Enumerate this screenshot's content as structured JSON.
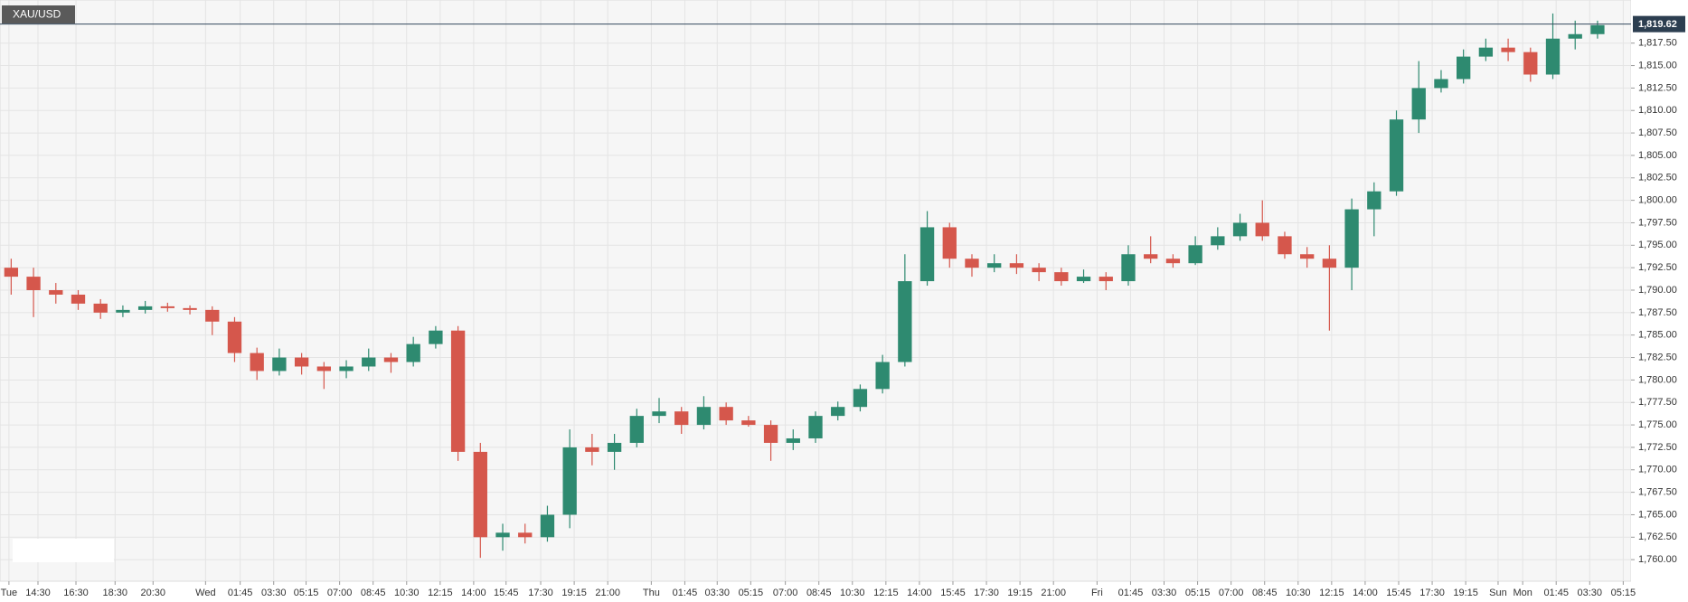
{
  "chart_data": {
    "type": "candlestick",
    "symbol": "XAU/USD",
    "last_price": {
      "value": 1819.62,
      "label": "1,819.62"
    },
    "up_color": "#2e8a70",
    "down_color": "#d5574c",
    "xlim": [
      0,
      146
    ],
    "xticks": [
      {
        "value": 0.8,
        "label": "Tue"
      },
      {
        "value": 3.4,
        "label": "14:30"
      },
      {
        "value": 6.8,
        "label": "16:30"
      },
      {
        "value": 10.3,
        "label": "18:30"
      },
      {
        "value": 13.7,
        "label": "20:30"
      },
      {
        "value": 18.4,
        "label": "Wed"
      },
      {
        "value": 21.5,
        "label": "01:45"
      },
      {
        "value": 24.5,
        "label": "03:30"
      },
      {
        "value": 27.4,
        "label": "05:15"
      },
      {
        "value": 30.4,
        "label": "07:00"
      },
      {
        "value": 33.4,
        "label": "08:45"
      },
      {
        "value": 36.4,
        "label": "10:30"
      },
      {
        "value": 39.4,
        "label": "12:15"
      },
      {
        "value": 42.4,
        "label": "14:00"
      },
      {
        "value": 45.3,
        "label": "15:45"
      },
      {
        "value": 48.4,
        "label": "17:30"
      },
      {
        "value": 51.4,
        "label": "19:15"
      },
      {
        "value": 54.4,
        "label": "21:00"
      },
      {
        "value": 58.3,
        "label": "Thu"
      },
      {
        "value": 61.3,
        "label": "01:45"
      },
      {
        "value": 64.2,
        "label": "03:30"
      },
      {
        "value": 67.2,
        "label": "05:15"
      },
      {
        "value": 70.3,
        "label": "07:00"
      },
      {
        "value": 73.3,
        "label": "08:45"
      },
      {
        "value": 76.3,
        "label": "10:30"
      },
      {
        "value": 79.3,
        "label": "12:15"
      },
      {
        "value": 82.3,
        "label": "14:00"
      },
      {
        "value": 85.3,
        "label": "15:45"
      },
      {
        "value": 88.3,
        "label": "17:30"
      },
      {
        "value": 91.3,
        "label": "19:15"
      },
      {
        "value": 94.3,
        "label": "21:00"
      },
      {
        "value": 98.2,
        "label": "Fri"
      },
      {
        "value": 101.2,
        "label": "01:45"
      },
      {
        "value": 104.2,
        "label": "03:30"
      },
      {
        "value": 107.2,
        "label": "05:15"
      },
      {
        "value": 110.2,
        "label": "07:00"
      },
      {
        "value": 113.2,
        "label": "08:45"
      },
      {
        "value": 116.2,
        "label": "10:30"
      },
      {
        "value": 119.2,
        "label": "12:15"
      },
      {
        "value": 122.2,
        "label": "14:00"
      },
      {
        "value": 125.2,
        "label": "15:45"
      },
      {
        "value": 128.2,
        "label": "17:30"
      },
      {
        "value": 131.2,
        "label": "19:15"
      },
      {
        "value": 134.1,
        "label": "Sun"
      },
      {
        "value": 136.3,
        "label": "Mon"
      },
      {
        "value": 139.3,
        "label": "01:45"
      },
      {
        "value": 142.3,
        "label": "03:30"
      },
      {
        "value": 145.3,
        "label": "05:15"
      }
    ],
    "ylim": [
      1757.6,
      1822.3
    ],
    "yticks": [
      {
        "value": 1760,
        "label": "1,760.00"
      },
      {
        "value": 1762.5,
        "label": "1,762.50"
      },
      {
        "value": 1765,
        "label": "1,765.00"
      },
      {
        "value": 1767.5,
        "label": "1,767.50"
      },
      {
        "value": 1770,
        "label": "1,770.00"
      },
      {
        "value": 1772.5,
        "label": "1,772.50"
      },
      {
        "value": 1775,
        "label": "1,775.00"
      },
      {
        "value": 1777.5,
        "label": "1,777.50"
      },
      {
        "value": 1780,
        "label": "1,780.00"
      },
      {
        "value": 1782.5,
        "label": "1,782.50"
      },
      {
        "value": 1785,
        "label": "1,785.00"
      },
      {
        "value": 1787.5,
        "label": "1,787.50"
      },
      {
        "value": 1790,
        "label": "1,790.00"
      },
      {
        "value": 1792.5,
        "label": "1,792.50"
      },
      {
        "value": 1795,
        "label": "1,795.00"
      },
      {
        "value": 1797.5,
        "label": "1,797.50"
      },
      {
        "value": 1800,
        "label": "1,800.00"
      },
      {
        "value": 1802.5,
        "label": "1,802.50"
      },
      {
        "value": 1805,
        "label": "1,805.00"
      },
      {
        "value": 1807.5,
        "label": "1,807.50"
      },
      {
        "value": 1810,
        "label": "1,810.00"
      },
      {
        "value": 1812.5,
        "label": "1,812.50"
      },
      {
        "value": 1815,
        "label": "1,815.00"
      },
      {
        "value": 1817.5,
        "label": "1,817.50"
      }
    ],
    "grid": true,
    "x": [
      1,
      3,
      5,
      7,
      9,
      11,
      13,
      15,
      17,
      19,
      21,
      23,
      25,
      27,
      29,
      31,
      33,
      35,
      37,
      39,
      41,
      43,
      45,
      47,
      49,
      51,
      53,
      55,
      57,
      59,
      61,
      63,
      65,
      67,
      69,
      71,
      73,
      75,
      77,
      79,
      81,
      83,
      85,
      87,
      89,
      91,
      93,
      95,
      97,
      99,
      101,
      103,
      105,
      107,
      109,
      111,
      113,
      115,
      117,
      119,
      121,
      123,
      125,
      127,
      129,
      131,
      133,
      135,
      137,
      139,
      141,
      143
    ],
    "open": [
      1792.5,
      1791.5,
      1790,
      1789.5,
      1788.5,
      1787.5,
      1787.8,
      1788.2,
      1788,
      1787.8,
      1786.5,
      1783,
      1781,
      1782.5,
      1781.5,
      1781,
      1781.5,
      1782.5,
      1782,
      1784,
      1785.5,
      1772,
      1762.5,
      1763,
      1762.5,
      1765,
      1772.5,
      1772,
      1773,
      1776,
      1776.5,
      1775,
      1777,
      1775.5,
      1775,
      1773,
      1773.5,
      1776,
      1777,
      1779,
      1782,
      1791,
      1797,
      1793.5,
      1792.5,
      1793,
      1792.5,
      1792,
      1791,
      1791.5,
      1791,
      1794,
      1793.5,
      1793,
      1795,
      1796,
      1797.5,
      1796,
      1794,
      1793.5,
      1792.5,
      1799,
      1801,
      1809,
      1812.5,
      1813.5,
      1816,
      1817,
      1816.5,
      1814,
      1818,
      1818.5
    ],
    "high": [
      1793.5,
      1792.5,
      1790.8,
      1790,
      1789,
      1788.3,
      1788.8,
      1788.6,
      1788.3,
      1788.2,
      1787,
      1783.6,
      1783.5,
      1783,
      1782,
      1782.2,
      1783.5,
      1783,
      1784.8,
      1786,
      1786,
      1773,
      1764,
      1764,
      1766,
      1774.5,
      1774,
      1774,
      1776.8,
      1778,
      1777,
      1778.2,
      1777.5,
      1776,
      1775.5,
      1774.5,
      1776.5,
      1777.6,
      1779.5,
      1782.8,
      1794,
      1798.8,
      1797.5,
      1794,
      1794,
      1794,
      1793,
      1792.5,
      1792.3,
      1792,
      1795,
      1796,
      1794,
      1796,
      1797,
      1798.5,
      1800,
      1796.5,
      1794.8,
      1795,
      1800.2,
      1802,
      1810,
      1815.5,
      1814.5,
      1816.8,
      1818,
      1818,
      1817,
      1820.8,
      1820,
      1820
    ],
    "low": [
      1789.5,
      1787,
      1788.5,
      1787.8,
      1786.8,
      1787,
      1787.4,
      1787.6,
      1787.3,
      1785,
      1782,
      1780,
      1780.5,
      1780.6,
      1779,
      1780.2,
      1781,
      1780.8,
      1781.5,
      1783.5,
      1771,
      1760.2,
      1761,
      1761.8,
      1762,
      1763.5,
      1770.5,
      1770,
      1772.5,
      1775.2,
      1774,
      1774.5,
      1775,
      1774.8,
      1771,
      1772.2,
      1773,
      1775.5,
      1776.5,
      1778.5,
      1781.5,
      1790.5,
      1792.5,
      1791.5,
      1792,
      1791.8,
      1791,
      1790.5,
      1790.8,
      1790,
      1790.5,
      1793,
      1792.5,
      1792.8,
      1794.5,
      1795.5,
      1795.5,
      1793.5,
      1792.5,
      1785.5,
      1790,
      1796,
      1800.5,
      1807.5,
      1812,
      1813,
      1815.5,
      1815.5,
      1813.2,
      1813.5,
      1816.8,
      1818
    ],
    "close": [
      1791.5,
      1790,
      1789.5,
      1788.5,
      1787.5,
      1787.8,
      1788.2,
      1788,
      1787.8,
      1786.5,
      1783,
      1781,
      1782.5,
      1781.5,
      1781,
      1781.5,
      1782.5,
      1782,
      1784,
      1785.5,
      1772,
      1762.5,
      1763,
      1762.5,
      1765,
      1772.5,
      1772,
      1773,
      1776,
      1776.5,
      1775,
      1777,
      1775.5,
      1775,
      1773,
      1773.5,
      1776,
      1777,
      1779,
      1782,
      1791,
      1797,
      1793.5,
      1792.5,
      1793,
      1792.5,
      1792,
      1791,
      1791.5,
      1791,
      1794,
      1793.5,
      1793,
      1795,
      1796,
      1797.5,
      1796,
      1794,
      1793.5,
      1792.5,
      1799,
      1801,
      1809,
      1812.5,
      1813.5,
      1816,
      1817,
      1816.5,
      1814,
      1818,
      1818.5,
      1819.5
    ]
  }
}
